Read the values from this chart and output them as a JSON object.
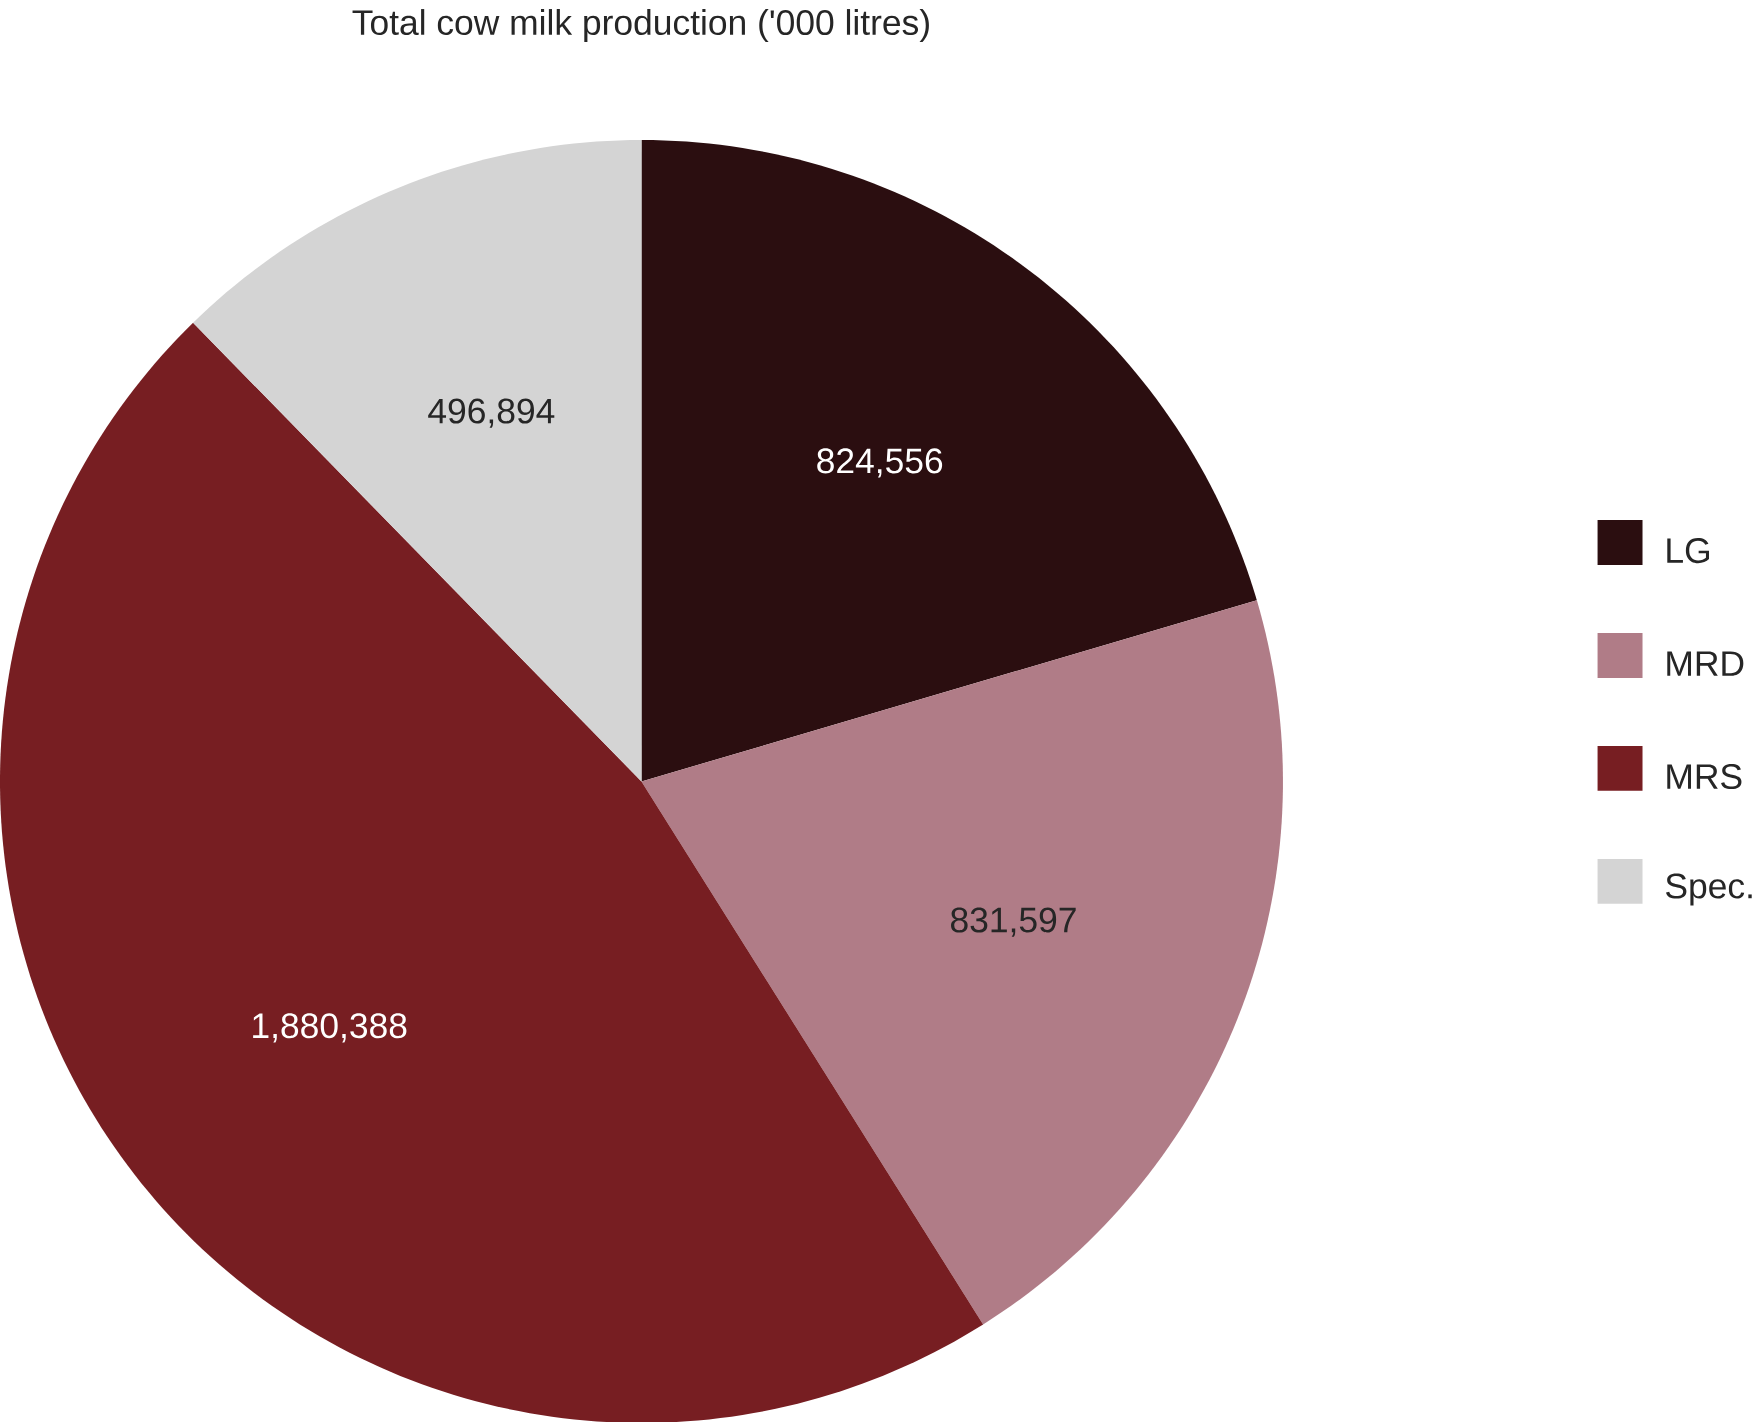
{
  "chart_data": {
    "type": "pie",
    "title": "Total cow milk production ('000 litres)",
    "categories": [
      "LG",
      "MRD",
      "MRS",
      "Spec."
    ],
    "values": [
      824556,
      831597,
      1880388,
      496894
    ],
    "value_labels": [
      "824,556",
      "831,597",
      "1,880,388",
      "496,894"
    ],
    "colors": [
      "#2b0e10",
      "#b07c87",
      "#771e22",
      "#d4d4d4"
    ],
    "legend": "right"
  }
}
